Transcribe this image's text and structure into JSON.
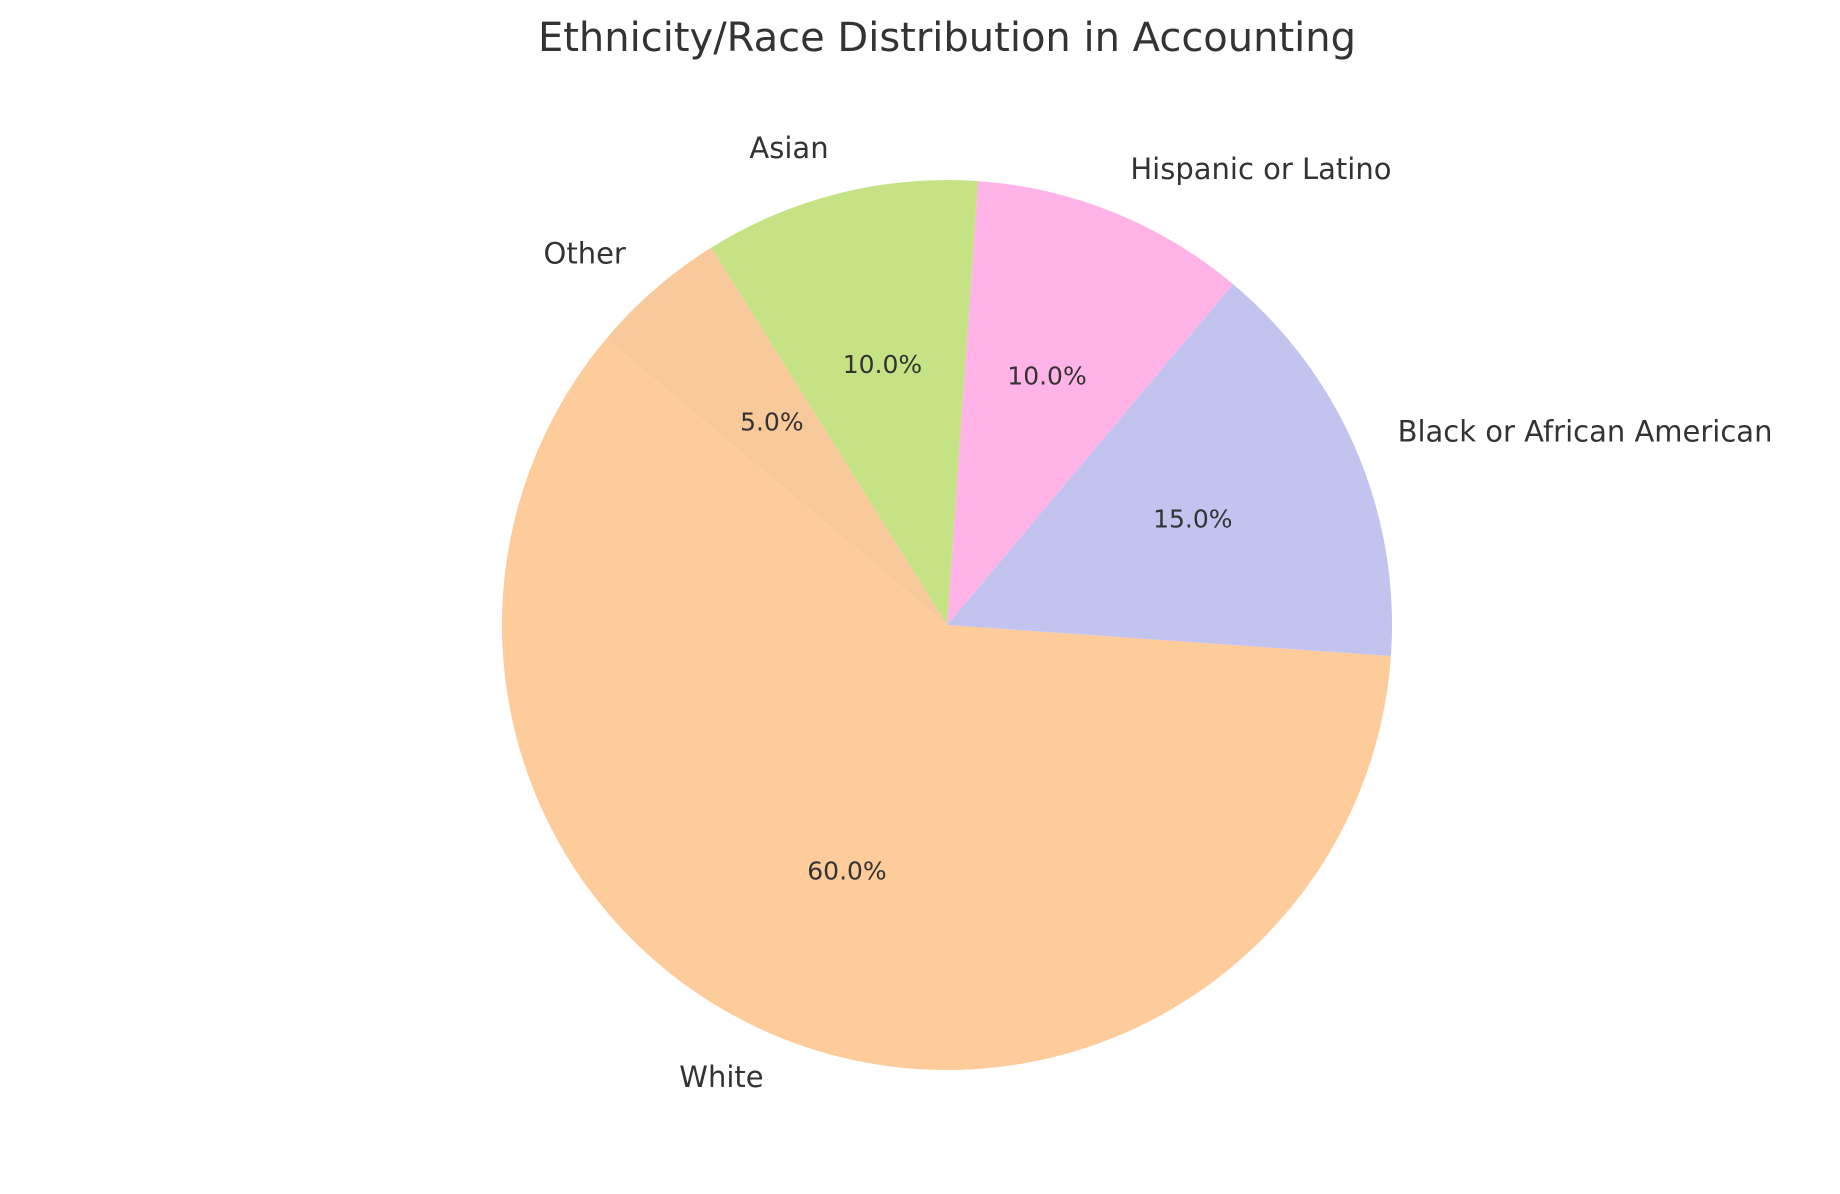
{
  "chart_data": {
    "type": "pie",
    "title": "Ethnicity/Race Distribution in Accounting",
    "categories": [
      "White",
      "Black or African American",
      "Hispanic or Latino",
      "Asian",
      "Other"
    ],
    "values": [
      60,
      15,
      10,
      10,
      5
    ],
    "value_labels": [
      "60.0%",
      "15.0%",
      "10.0%",
      "10.0%",
      "5.0%"
    ],
    "colors": [
      "#fecb9a",
      "#c3c3f0",
      "#ffb3e6",
      "#c5e384",
      "#f8c99b"
    ]
  }
}
